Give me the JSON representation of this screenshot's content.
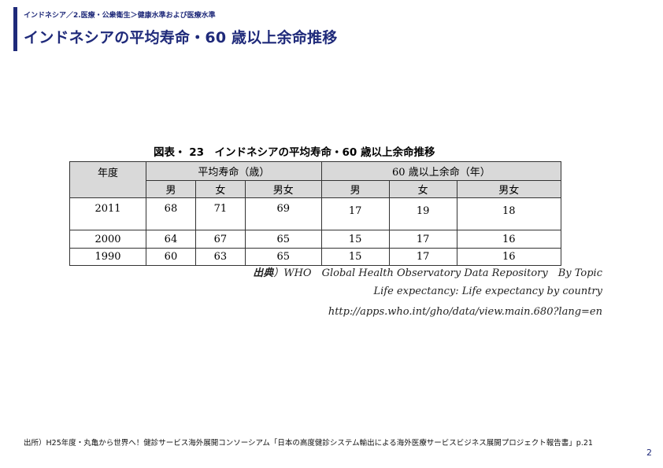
{
  "header": {
    "breadcrumb": "インドネシア／2.医療・公衆衛生＞健康水準および医療水準",
    "title": "インドネシアの平均寿命・60 歳以上余命推移"
  },
  "figure": {
    "caption": "図表・ 23　インドネシアの平均寿命・60 歳以上余命推移"
  },
  "table": {
    "year_header": "年度",
    "group1": "平均寿命（歳）",
    "group2": "60 歳以上余命（年）",
    "sub_headers": [
      "男",
      "女",
      "男女",
      "男",
      "女",
      "男女"
    ],
    "rows": [
      {
        "year": "2011",
        "values": [
          "68",
          "71",
          "69",
          "17",
          "19",
          "18"
        ]
      },
      {
        "year": "2000",
        "values": [
          "64",
          "67",
          "65",
          "15",
          "17",
          "16"
        ]
      },
      {
        "year": "1990",
        "values": [
          "60",
          "63",
          "65",
          "15",
          "17",
          "16"
        ]
      }
    ]
  },
  "source": {
    "label": "出典",
    "line1_rest": "）WHO　Global Health Observatory Data Repository　By Topic",
    "line2": "Life expectancy: Life expectancy by country",
    "line3": "http://apps.who.int/gho/data/view.main.680?lang=en"
  },
  "footer": {
    "note": "出所）H25年度・丸亀から世界へ！健診サービス海外展開コンソーシアム「日本の高度健診システム輸出による海外医療サービスビジネス展開プロジェクト報告書」p.21",
    "page_number": "2"
  }
}
